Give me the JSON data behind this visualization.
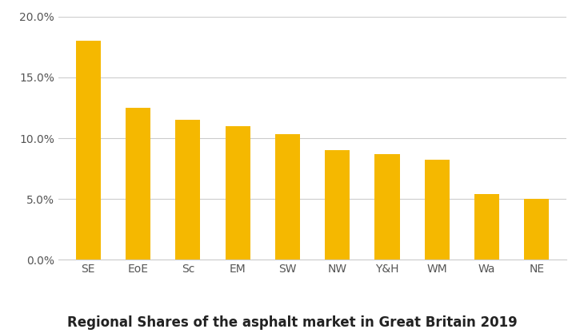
{
  "categories": [
    "SE",
    "EoE",
    "Sc",
    "EM",
    "SW",
    "NW",
    "Y&H",
    "WM",
    "Wa",
    "NE"
  ],
  "values": [
    0.18,
    0.125,
    0.115,
    0.11,
    0.103,
    0.09,
    0.087,
    0.082,
    0.054,
    0.05
  ],
  "bar_color": "#F5B800",
  "title": "Regional Shares of the asphalt market in Great Britain 2019",
  "title_fontsize": 12,
  "title_fontweight": "bold",
  "ylim": [
    0,
    0.2
  ],
  "yticks": [
    0.0,
    0.05,
    0.1,
    0.15,
    0.2
  ],
  "background_color": "#ffffff",
  "grid_color": "#cccccc",
  "tick_label_fontsize": 10,
  "axis_label_color": "#555555",
  "bar_width": 0.5
}
